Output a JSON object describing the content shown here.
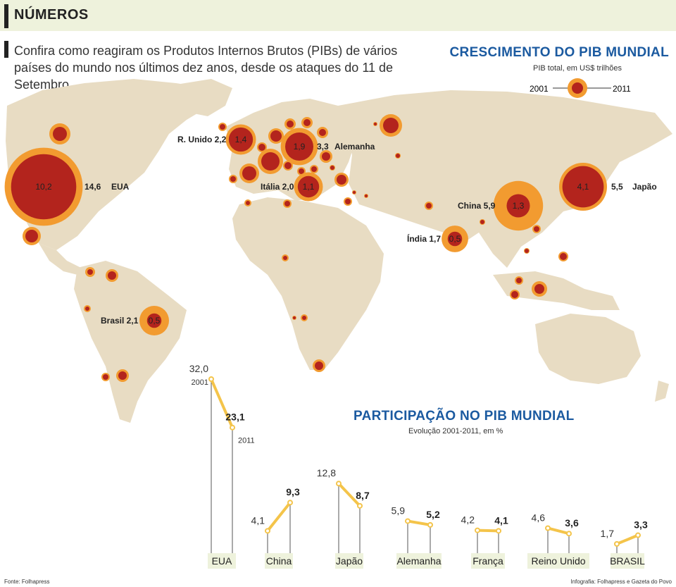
{
  "header": {
    "title": "NÚMEROS"
  },
  "intro": "Confira como reagiram os Produtos Internos Brutos (PIBs) de vários países do mundo nos últimos dez anos, desde os ataques do 11 de Setembro.",
  "map": {
    "title": "CRESCIMENTO DO PIB MUNDIAL",
    "subtitle": "PIB total, em US$ trilhões",
    "legend": {
      "left": "2001",
      "right": "2011"
    },
    "colors": {
      "land": "#e8dcc3",
      "outer": "#f29b30",
      "inner": "#b3241d"
    }
  },
  "participation": {
    "title": "PARTICIPAÇÃO NO PIB MUNDIAL",
    "subtitle": "Evolução 2001-2011, em %"
  },
  "footer": {
    "left": "Fonte: Folhapress",
    "right": "Infografia: Folhapress e Gazeta do Povo"
  },
  "chart_data": [
    {
      "type": "bubble-map",
      "title": "CRESCIMENTO DO PIB MUNDIAL",
      "subtitle": "PIB total, em US$ trilhões",
      "series_names": [
        "2001",
        "2011"
      ],
      "labeled": [
        {
          "name": "EUA",
          "v2001": 10.2,
          "v2011": 14.6,
          "v2001_label": "10,2",
          "v2011_label": "14,6"
        },
        {
          "name": "Japão",
          "v2001": 4.1,
          "v2011": 5.5,
          "v2001_label": "4,1",
          "v2011_label": "5,5"
        },
        {
          "name": "China",
          "v2001": 1.3,
          "v2011": 5.9,
          "v2001_label": "1,3",
          "v2011_label": "5,9"
        },
        {
          "name": "Alemanha",
          "v2001": 1.9,
          "v2011": 3.3,
          "v2001_label": "1,9",
          "v2011_label": "3,3"
        },
        {
          "name": "R. Unido",
          "v2001": 1.4,
          "v2011": 2.2,
          "v2001_label": "1,4",
          "v2011_label": "2,2"
        },
        {
          "name": "Itália",
          "v2001": 1.1,
          "v2011": 2.0,
          "v2001_label": "1,1",
          "v2011_label": "2,0"
        },
        {
          "name": "Brasil",
          "v2001": 0.5,
          "v2011": 2.1,
          "v2001_label": "0,5",
          "v2011_label": "2,1"
        },
        {
          "name": "Índia",
          "v2001": 0.5,
          "v2011": 1.7,
          "v2001_label": "0,5",
          "v2011_label": "1,7"
        }
      ]
    },
    {
      "type": "slope",
      "title": "PARTICIPAÇÃO NO PIB MUNDIAL",
      "subtitle": "Evolução 2001-2011, em %",
      "x": [
        "2001",
        "2011"
      ],
      "ylim": [
        0,
        32
      ],
      "series": [
        {
          "name": "EUA",
          "v2001": 32.0,
          "v2011": 23.1,
          "l2001": "32,0",
          "l2011": "23,1"
        },
        {
          "name": "China",
          "v2001": 4.1,
          "v2011": 9.3,
          "l2001": "4,1",
          "l2011": "9,3"
        },
        {
          "name": "Japão",
          "v2001": 12.8,
          "v2011": 8.7,
          "l2001": "12,8",
          "l2011": "8,7"
        },
        {
          "name": "Alemanha",
          "v2001": 5.9,
          "v2011": 5.2,
          "l2001": "5,9",
          "l2011": "5,2"
        },
        {
          "name": "França",
          "v2001": 4.2,
          "v2011": 4.1,
          "l2001": "4,2",
          "l2011": "4,1"
        },
        {
          "name": "Reino Unido",
          "v2001": 4.6,
          "v2011": 3.6,
          "l2001": "4,6",
          "l2011": "3,6"
        },
        {
          "name": "BRASIL",
          "v2001": 1.7,
          "v2011": 3.3,
          "l2001": "1,7",
          "l2011": "3,3"
        }
      ]
    }
  ]
}
